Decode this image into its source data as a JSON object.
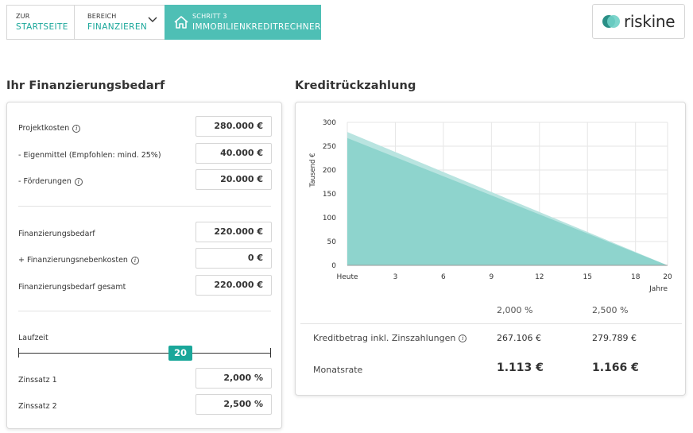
{
  "breadcrumb": {
    "home": {
      "small": "ZUR",
      "big": "STARTSEITE"
    },
    "area": {
      "small": "BEREICH",
      "big": "FINANZIEREN"
    },
    "step": {
      "small": "SCHRITT 3",
      "big": "IMMOBILIENKREDITRECHNER"
    }
  },
  "logo": {
    "text": "riskine"
  },
  "left": {
    "title": "Ihr Finanzierungsbedarf",
    "rows": [
      {
        "label": "Projektkosten",
        "value": "280.000 €"
      },
      {
        "label": "- Eigenmittel (Empfohlen: mind. 25%)",
        "value": "40.000 €"
      },
      {
        "label": "- Förderungen",
        "value": "20.000 €"
      },
      {
        "label": "Finanzierungsbedarf",
        "value": "220.000 €"
      },
      {
        "label": "+ Finanzierungsnebenkosten",
        "value": "0 €"
      },
      {
        "label": "Finanzierungsbedarf gesamt",
        "value": "220.000 €"
      }
    ],
    "laufzeit_label": "Laufzeit",
    "laufzeit_value": "20",
    "laufzeit_max": 20,
    "zins1_label": "Zinssatz 1",
    "zins1_value": "2,000 %",
    "zins2_label": "Zinssatz 2",
    "zins2_value": "2,500 %"
  },
  "right": {
    "title": "Kreditrückzahlung",
    "col1": "2,000 %",
    "col2": "2,500 %",
    "kredit_label": "Kreditbetrag inkl. Zinszahlungen",
    "kredit_v1": "267.106 €",
    "kredit_v2": "279.789 €",
    "rate_label": "Monatsrate",
    "rate_v1": "1.113 €",
    "rate_v2": "1.166 €"
  },
  "chart_data": {
    "type": "area",
    "ylabel": "Tausend €",
    "xlabel": "Jahre",
    "x_tick_labels": [
      "Heute",
      "3",
      "6",
      "9",
      "12",
      "15",
      "18",
      "20"
    ],
    "x_ticks": [
      0,
      3,
      6,
      9,
      12,
      15,
      18,
      20
    ],
    "y_ticks": [
      0,
      50,
      100,
      150,
      200,
      250,
      300
    ],
    "ylim": [
      0,
      300
    ],
    "xlim": [
      0,
      20
    ],
    "series": [
      {
        "color": "#b9e4e0",
        "x": [
          0,
          20
        ],
        "values": [
          279.789,
          0
        ]
      },
      {
        "color": "#8ed4cd",
        "x": [
          0,
          20
        ],
        "values": [
          267.106,
          0
        ]
      }
    ]
  },
  "colors": {
    "accent": "#1aa79a",
    "step_bg": "#4ebfb5"
  }
}
